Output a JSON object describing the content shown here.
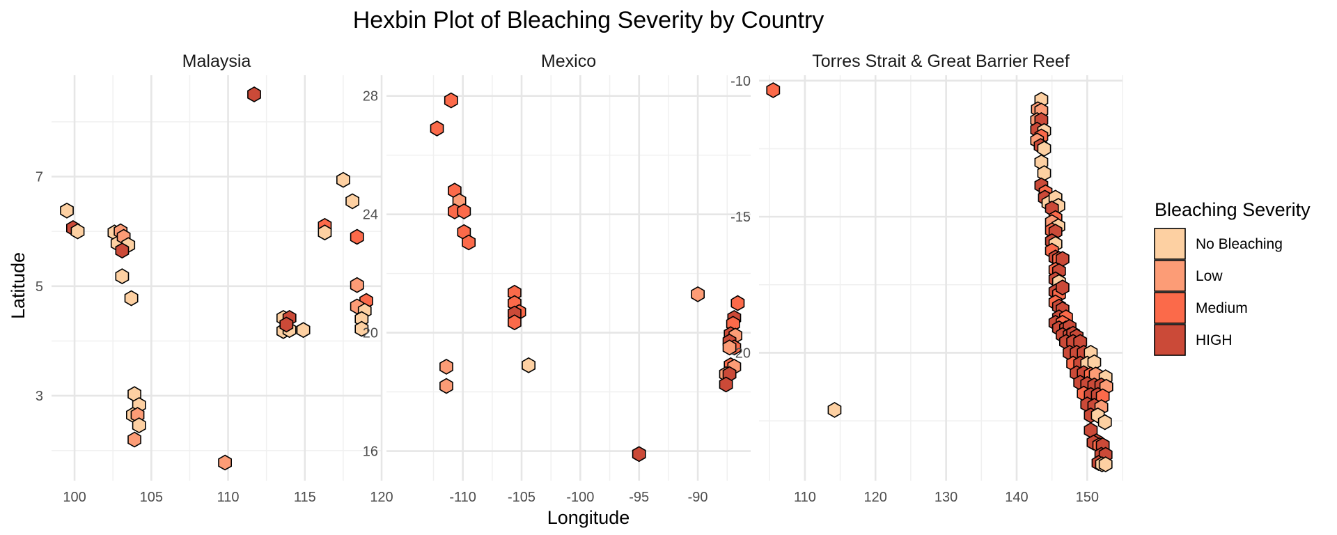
{
  "chart_data": {
    "type": "hexbin",
    "title": "Hexbin Plot of Bleaching Severity by Country",
    "xlabel": "Longitude",
    "ylabel": "Latitude",
    "legend": {
      "title": "Bleaching Severity",
      "position": "right",
      "entries": [
        {
          "label": "No Bleaching",
          "color": "#FDD0A2"
        },
        {
          "label": "Low",
          "color": "#FC9C76"
        },
        {
          "label": "Medium",
          "color": "#FB6A4A"
        },
        {
          "label": "HIGH",
          "color": "#CB4A38"
        }
      ]
    },
    "panels": [
      {
        "name": "Malaysia",
        "xlim": [
          98.5,
          120
        ],
        "ylim": [
          1.45,
          8.85
        ],
        "xticks": [
          100,
          105,
          110,
          115,
          120
        ],
        "yticks": [
          3,
          5,
          7
        ],
        "points": [
          {
            "x": 111.7,
            "y": 8.5,
            "s": "HIGH"
          },
          {
            "x": 99.5,
            "y": 6.38,
            "s": "No Bleaching"
          },
          {
            "x": 99.9,
            "y": 6.06,
            "s": "HIGH"
          },
          {
            "x": 100.2,
            "y": 6.0,
            "s": "No Bleaching"
          },
          {
            "x": 102.6,
            "y": 5.98,
            "s": "No Bleaching"
          },
          {
            "x": 103.0,
            "y": 6.0,
            "s": "Low"
          },
          {
            "x": 102.8,
            "y": 5.78,
            "s": "No Bleaching"
          },
          {
            "x": 103.2,
            "y": 5.9,
            "s": "Low"
          },
          {
            "x": 103.5,
            "y": 5.75,
            "s": "No Bleaching"
          },
          {
            "x": 103.1,
            "y": 5.65,
            "s": "HIGH"
          },
          {
            "x": 103.1,
            "y": 5.18,
            "s": "No Bleaching"
          },
          {
            "x": 103.7,
            "y": 4.78,
            "s": "No Bleaching"
          },
          {
            "x": 103.9,
            "y": 3.03,
            "s": "No Bleaching"
          },
          {
            "x": 104.2,
            "y": 2.83,
            "s": "No Bleaching"
          },
          {
            "x": 103.8,
            "y": 2.65,
            "s": "No Bleaching"
          },
          {
            "x": 104.1,
            "y": 2.65,
            "s": "Low"
          },
          {
            "x": 104.2,
            "y": 2.46,
            "s": "No Bleaching"
          },
          {
            "x": 103.9,
            "y": 2.2,
            "s": "Low"
          },
          {
            "x": 109.8,
            "y": 1.78,
            "s": "Low"
          },
          {
            "x": 113.6,
            "y": 4.42,
            "s": "No Bleaching"
          },
          {
            "x": 114.0,
            "y": 4.42,
            "s": "HIGH"
          },
          {
            "x": 113.6,
            "y": 4.18,
            "s": "No Bleaching"
          },
          {
            "x": 114.0,
            "y": 4.2,
            "s": "No Bleaching"
          },
          {
            "x": 113.8,
            "y": 4.3,
            "s": "HIGH"
          },
          {
            "x": 114.9,
            "y": 4.2,
            "s": "No Bleaching"
          },
          {
            "x": 117.5,
            "y": 6.94,
            "s": "No Bleaching"
          },
          {
            "x": 118.1,
            "y": 6.55,
            "s": "No Bleaching"
          },
          {
            "x": 116.3,
            "y": 6.1,
            "s": "Medium"
          },
          {
            "x": 116.3,
            "y": 5.98,
            "s": "No Bleaching"
          },
          {
            "x": 118.4,
            "y": 5.9,
            "s": "Medium"
          },
          {
            "x": 118.4,
            "y": 5.02,
            "s": "Low"
          },
          {
            "x": 119.0,
            "y": 4.73,
            "s": "Medium"
          },
          {
            "x": 118.4,
            "y": 4.63,
            "s": "Low"
          },
          {
            "x": 118.9,
            "y": 4.55,
            "s": "No Bleaching"
          },
          {
            "x": 118.7,
            "y": 4.4,
            "s": "No Bleaching"
          },
          {
            "x": 118.7,
            "y": 4.22,
            "s": "No Bleaching"
          }
        ]
      },
      {
        "name": "Mexico",
        "xlim": [
          -116.5,
          -85.5
        ],
        "ylim": [
          15,
          28.7
        ],
        "xticks": [
          -110,
          -105,
          -100,
          -95,
          -90
        ],
        "yticks": [
          16,
          20,
          24,
          28
        ],
        "points": [
          {
            "x": -111.0,
            "y": 27.85,
            "s": "Medium"
          },
          {
            "x": -112.2,
            "y": 26.9,
            "s": "Medium"
          },
          {
            "x": -110.7,
            "y": 24.8,
            "s": "Medium"
          },
          {
            "x": -110.3,
            "y": 24.45,
            "s": "Low"
          },
          {
            "x": -110.7,
            "y": 24.1,
            "s": "Medium"
          },
          {
            "x": -109.9,
            "y": 24.1,
            "s": "Medium"
          },
          {
            "x": -109.9,
            "y": 23.4,
            "s": "Medium"
          },
          {
            "x": -109.5,
            "y": 23.05,
            "s": "Medium"
          },
          {
            "x": -105.6,
            "y": 21.35,
            "s": "Medium"
          },
          {
            "x": -105.6,
            "y": 21.0,
            "s": "Medium"
          },
          {
            "x": -105.2,
            "y": 20.7,
            "s": "Medium"
          },
          {
            "x": -105.6,
            "y": 20.65,
            "s": "HIGH"
          },
          {
            "x": -105.6,
            "y": 20.35,
            "s": "Medium"
          },
          {
            "x": -111.4,
            "y": 18.85,
            "s": "Low"
          },
          {
            "x": -111.4,
            "y": 18.2,
            "s": "Low"
          },
          {
            "x": -104.4,
            "y": 18.9,
            "s": "No Bleaching"
          },
          {
            "x": -95.0,
            "y": 15.9,
            "s": "HIGH"
          },
          {
            "x": -90.0,
            "y": 21.3,
            "s": "Low"
          },
          {
            "x": -86.6,
            "y": 21.0,
            "s": "Medium"
          },
          {
            "x": -86.9,
            "y": 20.5,
            "s": "HIGH"
          },
          {
            "x": -87.0,
            "y": 20.3,
            "s": "Medium"
          },
          {
            "x": -87.2,
            "y": 19.95,
            "s": "HIGH"
          },
          {
            "x": -86.8,
            "y": 19.9,
            "s": "Low"
          },
          {
            "x": -87.3,
            "y": 19.7,
            "s": "HIGH"
          },
          {
            "x": -86.9,
            "y": 19.5,
            "s": "Medium"
          },
          {
            "x": -87.3,
            "y": 19.5,
            "s": "Low"
          },
          {
            "x": -87.2,
            "y": 18.9,
            "s": "Medium"
          },
          {
            "x": -86.9,
            "y": 18.85,
            "s": "Low"
          },
          {
            "x": -87.6,
            "y": 18.6,
            "s": "Low"
          },
          {
            "x": -87.3,
            "y": 18.6,
            "s": "HIGH"
          },
          {
            "x": -87.6,
            "y": 18.25,
            "s": "HIGH"
          }
        ]
      },
      {
        "name": "Torres Strait & Great Barrier Reef",
        "xlim": [
          103.5,
          155
        ],
        "ylim": [
          -24.7,
          -9.8
        ],
        "xticks": [
          110,
          120,
          130,
          140,
          150
        ],
        "yticks": [
          -10,
          -15,
          -20
        ],
        "points": [
          {
            "x": 105.5,
            "y": -10.35,
            "s": "Medium"
          },
          {
            "x": 114.2,
            "y": -22.1,
            "s": "No Bleaching"
          },
          {
            "x": 143.5,
            "y": -10.7,
            "s": "No Bleaching"
          },
          {
            "x": 143.0,
            "y": -11.05,
            "s": "Low"
          },
          {
            "x": 143.5,
            "y": -11.1,
            "s": "Low"
          },
          {
            "x": 142.9,
            "y": -11.45,
            "s": "Low"
          },
          {
            "x": 143.5,
            "y": -11.45,
            "s": "HIGH"
          },
          {
            "x": 142.9,
            "y": -11.8,
            "s": "HIGH"
          },
          {
            "x": 143.9,
            "y": -11.85,
            "s": "No Bleaching"
          },
          {
            "x": 143.5,
            "y": -12.05,
            "s": "Medium"
          },
          {
            "x": 142.9,
            "y": -12.2,
            "s": "Low"
          },
          {
            "x": 143.4,
            "y": -12.4,
            "s": "HIGH"
          },
          {
            "x": 143.9,
            "y": -12.5,
            "s": "No Bleaching"
          },
          {
            "x": 143.5,
            "y": -13.0,
            "s": "No Bleaching"
          },
          {
            "x": 143.9,
            "y": -13.4,
            "s": "No Bleaching"
          },
          {
            "x": 143.5,
            "y": -13.85,
            "s": "HIGH"
          },
          {
            "x": 144.1,
            "y": -14.1,
            "s": "Medium"
          },
          {
            "x": 144.0,
            "y": -14.3,
            "s": "HIGH"
          },
          {
            "x": 144.5,
            "y": -14.5,
            "s": "No Bleaching"
          },
          {
            "x": 145.5,
            "y": -14.3,
            "s": "No Bleaching"
          },
          {
            "x": 145.9,
            "y": -14.6,
            "s": "No Bleaching"
          },
          {
            "x": 145.0,
            "y": -14.7,
            "s": "HIGH"
          },
          {
            "x": 145.5,
            "y": -15.05,
            "s": "Medium"
          },
          {
            "x": 145.0,
            "y": -15.2,
            "s": "Low"
          },
          {
            "x": 145.9,
            "y": -15.35,
            "s": "No Bleaching"
          },
          {
            "x": 145.0,
            "y": -15.5,
            "s": "Medium"
          },
          {
            "x": 145.5,
            "y": -15.55,
            "s": "HIGH"
          },
          {
            "x": 145.0,
            "y": -15.9,
            "s": "HIGH"
          },
          {
            "x": 145.5,
            "y": -16.0,
            "s": "No Bleaching"
          },
          {
            "x": 145.0,
            "y": -16.25,
            "s": "Medium"
          },
          {
            "x": 145.5,
            "y": -16.5,
            "s": "HIGH"
          },
          {
            "x": 146.0,
            "y": -16.55,
            "s": "Medium"
          },
          {
            "x": 146.5,
            "y": -16.55,
            "s": "HIGH"
          },
          {
            "x": 145.5,
            "y": -16.95,
            "s": "Medium"
          },
          {
            "x": 146.0,
            "y": -17.0,
            "s": "HIGH"
          },
          {
            "x": 145.5,
            "y": -17.3,
            "s": "HIGH"
          },
          {
            "x": 146.0,
            "y": -17.4,
            "s": "No Bleaching"
          },
          {
            "x": 145.5,
            "y": -17.75,
            "s": "HIGH"
          },
          {
            "x": 146.0,
            "y": -17.85,
            "s": "Medium"
          },
          {
            "x": 146.5,
            "y": -17.6,
            "s": "HIGH"
          },
          {
            "x": 145.5,
            "y": -18.15,
            "s": "Medium"
          },
          {
            "x": 146.0,
            "y": -18.3,
            "s": "HIGH"
          },
          {
            "x": 146.5,
            "y": -18.4,
            "s": "HIGH"
          },
          {
            "x": 146.0,
            "y": -18.7,
            "s": "HIGH"
          },
          {
            "x": 147.0,
            "y": -18.7,
            "s": "Medium"
          },
          {
            "x": 145.5,
            "y": -18.9,
            "s": "HIGH"
          },
          {
            "x": 146.5,
            "y": -18.9,
            "s": "Medium"
          },
          {
            "x": 146.0,
            "y": -19.1,
            "s": "HIGH"
          },
          {
            "x": 147.0,
            "y": -19.1,
            "s": "HIGH"
          },
          {
            "x": 147.5,
            "y": -19.05,
            "s": "HIGH"
          },
          {
            "x": 146.5,
            "y": -19.35,
            "s": "HIGH"
          },
          {
            "x": 147.5,
            "y": -19.35,
            "s": "HIGH"
          },
          {
            "x": 148.0,
            "y": -19.3,
            "s": "HIGH"
          },
          {
            "x": 148.5,
            "y": -19.4,
            "s": "HIGH"
          },
          {
            "x": 147.0,
            "y": -19.6,
            "s": "HIGH"
          },
          {
            "x": 148.0,
            "y": -19.6,
            "s": "HIGH"
          },
          {
            "x": 149.0,
            "y": -19.6,
            "s": "HIGH"
          },
          {
            "x": 147.5,
            "y": -20.0,
            "s": "HIGH"
          },
          {
            "x": 148.5,
            "y": -20.0,
            "s": "HIGH"
          },
          {
            "x": 149.5,
            "y": -20.0,
            "s": "HIGH"
          },
          {
            "x": 150.5,
            "y": -20.0,
            "s": "No Bleaching"
          },
          {
            "x": 148.0,
            "y": -20.4,
            "s": "Medium"
          },
          {
            "x": 149.0,
            "y": -20.4,
            "s": "HIGH"
          },
          {
            "x": 150.0,
            "y": -20.4,
            "s": "No Bleaching"
          },
          {
            "x": 151.0,
            "y": -20.35,
            "s": "No Bleaching"
          },
          {
            "x": 148.5,
            "y": -20.75,
            "s": "HIGH"
          },
          {
            "x": 149.5,
            "y": -20.75,
            "s": "HIGH"
          },
          {
            "x": 150.5,
            "y": -20.8,
            "s": "Medium"
          },
          {
            "x": 151.2,
            "y": -20.8,
            "s": "Low"
          },
          {
            "x": 152.6,
            "y": -20.9,
            "s": "No Bleaching"
          },
          {
            "x": 149.0,
            "y": -21.1,
            "s": "HIGH"
          },
          {
            "x": 150.0,
            "y": -21.15,
            "s": "HIGH"
          },
          {
            "x": 151.0,
            "y": -21.2,
            "s": "HIGH"
          },
          {
            "x": 152.0,
            "y": -21.2,
            "s": "HIGH"
          },
          {
            "x": 152.7,
            "y": -21.25,
            "s": "Low"
          },
          {
            "x": 149.5,
            "y": -21.5,
            "s": "Medium"
          },
          {
            "x": 150.5,
            "y": -21.55,
            "s": "HIGH"
          },
          {
            "x": 151.5,
            "y": -21.55,
            "s": "HIGH"
          },
          {
            "x": 152.2,
            "y": -21.6,
            "s": "Medium"
          },
          {
            "x": 150.0,
            "y": -21.9,
            "s": "HIGH"
          },
          {
            "x": 151.0,
            "y": -21.95,
            "s": "HIGH"
          },
          {
            "x": 152.0,
            "y": -22.0,
            "s": "Low"
          },
          {
            "x": 150.5,
            "y": -22.3,
            "s": "HIGH"
          },
          {
            "x": 151.5,
            "y": -22.3,
            "s": "No Bleaching"
          },
          {
            "x": 152.5,
            "y": -22.55,
            "s": "No Bleaching"
          },
          {
            "x": 150.5,
            "y": -22.85,
            "s": "HIGH"
          },
          {
            "x": 151.3,
            "y": -23.25,
            "s": "HIGH"
          },
          {
            "x": 150.9,
            "y": -23.3,
            "s": "HIGH"
          },
          {
            "x": 151.7,
            "y": -23.4,
            "s": "Medium"
          },
          {
            "x": 152.2,
            "y": -23.4,
            "s": "HIGH"
          },
          {
            "x": 152.0,
            "y": -23.75,
            "s": "HIGH"
          },
          {
            "x": 152.6,
            "y": -23.75,
            "s": "HIGH"
          },
          {
            "x": 151.6,
            "y": -24.05,
            "s": "HIGH"
          },
          {
            "x": 152.1,
            "y": -24.1,
            "s": "No Bleaching"
          },
          {
            "x": 152.6,
            "y": -24.1,
            "s": "No Bleaching"
          }
        ]
      }
    ]
  }
}
